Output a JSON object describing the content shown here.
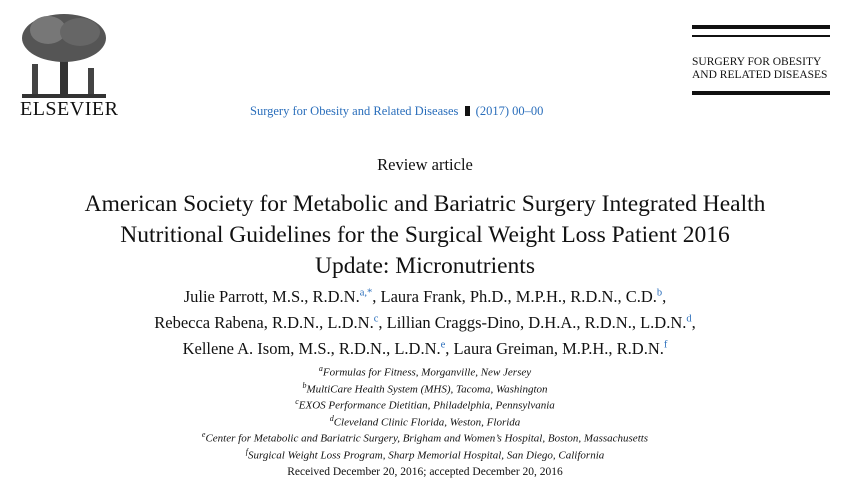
{
  "header": {
    "publisher": "ELSEVIER",
    "journal_name": "Surgery for Obesity and Related Diseases",
    "journal_issue": "(2017) 00–00",
    "journal_box_lines": [
      "SURGERY FOR OBESITY",
      "AND RELATED DISEASES"
    ]
  },
  "article": {
    "type": "Review article",
    "title_lines": [
      "American Society for Metabolic and Bariatric Surgery Integrated Health",
      "Nutritional Guidelines for the Surgical Weight Loss Patient 2016",
      "Update: Micronutrients"
    ],
    "author_lines": [
      [
        {
          "name": "Julie Parrott, M.S., R.D.N.",
          "sup": "a,*",
          "sep": ","
        },
        {
          "name": "Laura Frank, Ph.D., M.P.H., R.D.N., C.D.",
          "sup": "b",
          "sep": ","
        }
      ],
      [
        {
          "name": "Rebecca Rabena, R.D.N., L.D.N.",
          "sup": "c",
          "sep": ","
        },
        {
          "name": "Lillian Craggs-Dino, D.H.A., R.D.N., L.D.N.",
          "sup": "d",
          "sep": ","
        }
      ],
      [
        {
          "name": "Kellene A. Isom, M.S., R.D.N., L.D.N.",
          "sup": "e",
          "sep": ","
        },
        {
          "name": "Laura Greiman, M.P.H., R.D.N.",
          "sup": "f"
        }
      ]
    ],
    "affiliations": [
      {
        "sup": "a",
        "text": "Formulas for Fitness, Morganville, New Jersey"
      },
      {
        "sup": "b",
        "text": "MultiCare Health System (MHS), Tacoma, Washington"
      },
      {
        "sup": "c",
        "text": "EXOS Performance Dietitian, Philadelphia, Pennsylvania"
      },
      {
        "sup": "d",
        "text": "Cleveland Clinic Florida, Weston, Florida"
      },
      {
        "sup": "e",
        "text": "Center for Metabolic and Bariatric Surgery, Brigham and Women’s Hospital, Boston, Massachusetts"
      },
      {
        "sup": "f",
        "text": "Surgical Weight Loss Program, Sharp Memorial Hospital, San Diego, California"
      }
    ],
    "received": "Received December 20, 2016; accepted December 20, 2016"
  }
}
